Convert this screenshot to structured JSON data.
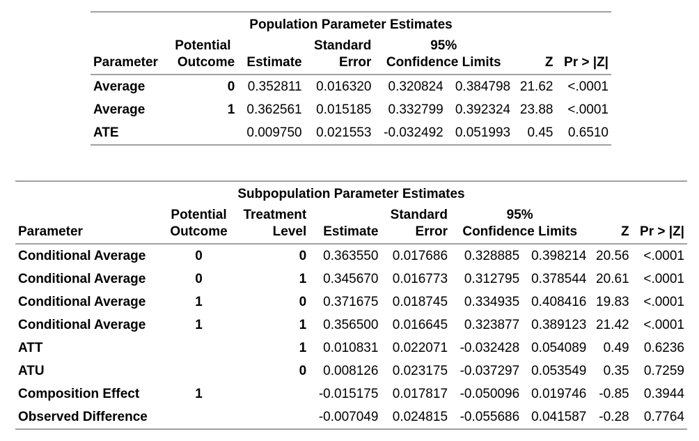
{
  "population": {
    "title": "Population Parameter Estimates",
    "headers": {
      "parameter": "Parameter",
      "potential_outcome_1": "Potential",
      "potential_outcome_2": "Outcome",
      "estimate": "Estimate",
      "std_1": "Standard",
      "std_2": "Error",
      "ci_1": "95%",
      "ci_2": "Confidence Limits",
      "z": "Z",
      "p": "Pr > |Z|"
    },
    "rows": [
      {
        "parameter": "Average",
        "outcome": "0",
        "estimate": "0.352811",
        "stderr": "0.016320",
        "lower": "0.320824",
        "upper": "0.384798",
        "z": "21.62",
        "p": "<.0001"
      },
      {
        "parameter": "Average",
        "outcome": "1",
        "estimate": "0.362561",
        "stderr": "0.015185",
        "lower": "0.332799",
        "upper": "0.392324",
        "z": "23.88",
        "p": "<.0001"
      },
      {
        "parameter": "ATE",
        "outcome": "",
        "estimate": "0.009750",
        "stderr": "0.021553",
        "lower": "-0.032492",
        "upper": "0.051993",
        "z": "0.45",
        "p": "0.6510"
      }
    ]
  },
  "subpopulation": {
    "title": "Subpopulation Parameter Estimates",
    "headers": {
      "parameter": "Parameter",
      "potential_outcome_1": "Potential",
      "potential_outcome_2": "Outcome",
      "treatment_1": "Treatment",
      "treatment_2": "Level",
      "estimate": "Estimate",
      "std_1": "Standard",
      "std_2": "Error",
      "ci_1": "95%",
      "ci_2": "Confidence Limits",
      "z": "Z",
      "p": "Pr > |Z|"
    },
    "rows": [
      {
        "parameter": "Conditional Average",
        "outcome": "0",
        "treatment": "0",
        "estimate": "0.363550",
        "stderr": "0.017686",
        "lower": "0.328885",
        "upper": "0.398214",
        "z": "20.56",
        "p": "<.0001"
      },
      {
        "parameter": "Conditional Average",
        "outcome": "0",
        "treatment": "1",
        "estimate": "0.345670",
        "stderr": "0.016773",
        "lower": "0.312795",
        "upper": "0.378544",
        "z": "20.61",
        "p": "<.0001"
      },
      {
        "parameter": "Conditional Average",
        "outcome": "1",
        "treatment": "0",
        "estimate": "0.371675",
        "stderr": "0.018745",
        "lower": "0.334935",
        "upper": "0.408416",
        "z": "19.83",
        "p": "<.0001"
      },
      {
        "parameter": "Conditional Average",
        "outcome": "1",
        "treatment": "1",
        "estimate": "0.356500",
        "stderr": "0.016645",
        "lower": "0.323877",
        "upper": "0.389123",
        "z": "21.42",
        "p": "<.0001"
      },
      {
        "parameter": "ATT",
        "outcome": "",
        "treatment": "1",
        "estimate": "0.010831",
        "stderr": "0.022071",
        "lower": "-0.032428",
        "upper": "0.054089",
        "z": "0.49",
        "p": "0.6236"
      },
      {
        "parameter": "ATU",
        "outcome": "",
        "treatment": "0",
        "estimate": "0.008126",
        "stderr": "0.023175",
        "lower": "-0.037297",
        "upper": "0.053549",
        "z": "0.35",
        "p": "0.7259"
      },
      {
        "parameter": "Composition Effect",
        "outcome": "1",
        "treatment": "",
        "estimate": "-0.015175",
        "stderr": "0.017817",
        "lower": "-0.050096",
        "upper": "0.019746",
        "z": "-0.85",
        "p": "0.3944"
      },
      {
        "parameter": "Observed Difference",
        "outcome": "",
        "treatment": "",
        "estimate": "-0.007049",
        "stderr": "0.024815",
        "lower": "-0.055686",
        "upper": "0.041587",
        "z": "-0.28",
        "p": "0.7764"
      }
    ]
  }
}
